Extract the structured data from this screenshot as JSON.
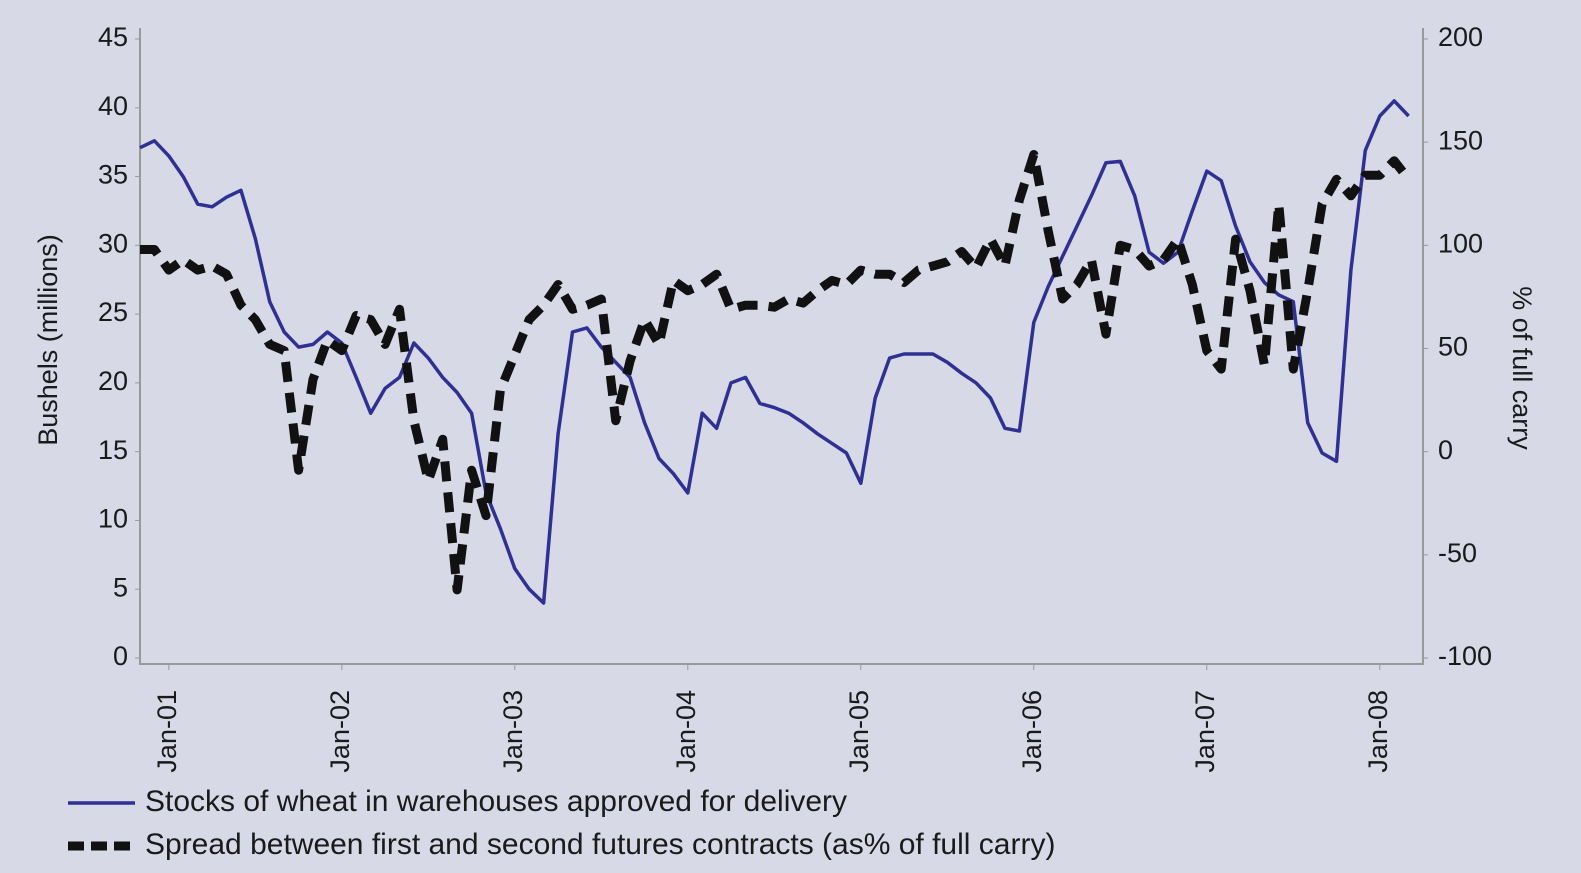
{
  "chart_data": {
    "type": "line",
    "x": [
      "2000-11",
      "2000-12",
      "2001-01",
      "2001-02",
      "2001-03",
      "2001-04",
      "2001-05",
      "2001-06",
      "2001-07",
      "2001-08",
      "2001-09",
      "2001-10",
      "2001-11",
      "2001-12",
      "2002-01",
      "2002-02",
      "2002-03",
      "2002-04",
      "2002-05",
      "2002-06",
      "2002-07",
      "2002-08",
      "2002-09",
      "2002-10",
      "2002-11",
      "2002-12",
      "2003-01",
      "2003-02",
      "2003-03",
      "2003-04",
      "2003-05",
      "2003-06",
      "2003-07",
      "2003-08",
      "2003-09",
      "2003-10",
      "2003-11",
      "2003-12",
      "2004-01",
      "2004-02",
      "2004-03",
      "2004-04",
      "2004-05",
      "2004-06",
      "2004-07",
      "2004-08",
      "2004-09",
      "2004-10",
      "2004-11",
      "2004-12",
      "2005-01",
      "2005-02",
      "2005-03",
      "2005-04",
      "2005-05",
      "2005-06",
      "2005-07",
      "2005-08",
      "2005-09",
      "2005-10",
      "2005-11",
      "2005-12",
      "2006-01",
      "2006-02",
      "2006-03",
      "2006-04",
      "2006-05",
      "2006-06",
      "2006-07",
      "2006-08",
      "2006-09",
      "2006-10",
      "2006-11",
      "2006-12",
      "2007-01",
      "2007-02",
      "2007-03",
      "2007-04",
      "2007-05",
      "2007-06",
      "2007-07",
      "2007-08",
      "2007-09",
      "2007-10",
      "2007-11",
      "2007-12",
      "2008-01",
      "2008-02",
      "2008-03"
    ],
    "xlim": [
      "2000-11",
      "2008-04"
    ],
    "xticks": [
      {
        "value": "2001-01",
        "label": "Jan-01"
      },
      {
        "value": "2002-01",
        "label": "Jan-02"
      },
      {
        "value": "2003-01",
        "label": "Jan-03"
      },
      {
        "value": "2004-01",
        "label": "Jan-04"
      },
      {
        "value": "2005-01",
        "label": "Jan-05"
      },
      {
        "value": "2006-01",
        "label": "Jan-06"
      },
      {
        "value": "2007-01",
        "label": "Jan-07"
      },
      {
        "value": "2008-01",
        "label": "Jan-08"
      }
    ],
    "ylabel": "Bushels (millions)",
    "y2label": "% of full carry",
    "ylim": [
      0,
      45
    ],
    "yticks": [
      0,
      5,
      10,
      15,
      20,
      25,
      30,
      35,
      40,
      45
    ],
    "y2lim": [
      -100,
      200
    ],
    "y2ticks": [
      -100,
      -50,
      0,
      50,
      100,
      150,
      200
    ],
    "grid": false,
    "series": [
      {
        "name": "Stocks of wheat in warehouses approved for delivery",
        "color": "#2e3192",
        "style": "solid",
        "values": [
          37.1,
          37.6,
          36.5,
          35,
          33,
          32.8,
          33.5,
          34,
          30.5,
          25.9,
          23.7,
          22.6,
          22.8,
          23.7,
          22.9,
          20.4,
          17.8,
          19.6,
          20.4,
          22.9,
          21.8,
          20.4,
          19.3,
          17.8,
          12,
          9.4,
          6.5,
          5,
          4,
          16.3,
          23.7,
          24,
          22.6,
          21.5,
          20.4,
          17.1,
          14.5,
          13.4,
          12,
          17.8,
          16.7,
          20,
          20.4,
          18.5,
          18.2,
          17.8,
          17.1,
          16.3,
          15.6,
          14.9,
          12.7,
          18.9,
          21.8,
          22.1,
          22.1,
          22.1,
          21.5,
          20.7,
          20,
          18.9,
          16.7,
          16.5,
          24.4,
          27,
          29.2,
          31.4,
          33.6,
          36,
          36.1,
          33.6,
          29.5,
          28.7,
          29.5,
          32.5,
          35.4,
          34.7,
          31.4,
          28.8,
          27.3,
          26.4,
          25.9,
          17.1,
          14.9,
          14.3,
          28.2,
          36.9,
          39.4,
          40.5,
          39.4
        ]
      },
      {
        "name": "Spread between first and second futures contracts (as% of full carry)",
        "color": "#111111",
        "style": "dashed",
        "axis": "y2",
        "values": [
          98,
          98,
          88,
          93,
          88,
          90,
          86,
          71,
          64,
          52,
          49,
          -9,
          35,
          54,
          49,
          66,
          64,
          52,
          69,
          15,
          -14,
          6,
          -67,
          -9,
          -31,
          30,
          47,
          64,
          71,
          81,
          69,
          71,
          74,
          15,
          44,
          64,
          52,
          83,
          78,
          81,
          86,
          69,
          71,
          71,
          70,
          74,
          72,
          78,
          83,
          81,
          88,
          86,
          86,
          82,
          88,
          90,
          92,
          97,
          89,
          103,
          90,
          122,
          144,
          107,
          74,
          81,
          93,
          57,
          100,
          98,
          90,
          93,
          103,
          81,
          49,
          40,
          103,
          78,
          42,
          120,
          40,
          78,
          120,
          132,
          124,
          134,
          134,
          141,
          132
        ]
      }
    ]
  }
}
